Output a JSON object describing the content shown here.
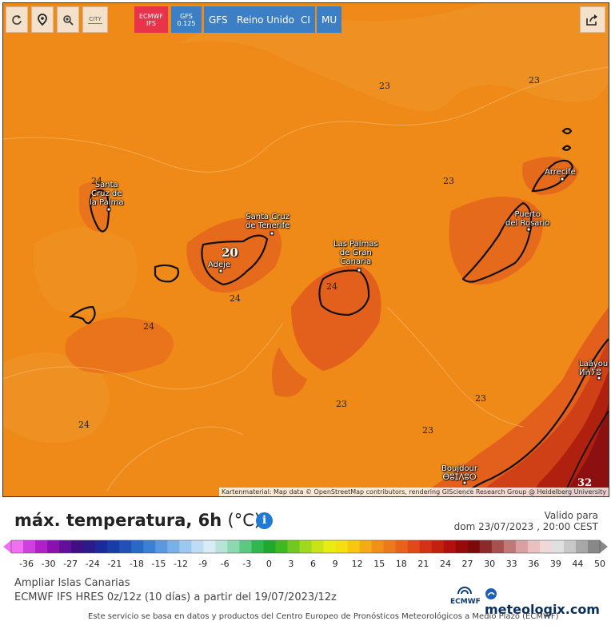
{
  "toolbar": {
    "city_label": "CITY",
    "models": [
      {
        "line1": "ECMWF",
        "line2": "IFS"
      },
      {
        "line1": "GFS",
        "line2": "0.125"
      }
    ],
    "gfs": "GFS",
    "region": "Reino Unido",
    "ci": "CI",
    "mu": "MU"
  },
  "map": {
    "cities": [
      {
        "name": "Santa\nCruz de\nla Palma"
      },
      {
        "name": "Santa Cruz\nde Tenerife"
      },
      {
        "name": "Adeje"
      },
      {
        "name": "Las Palmas\nde Gran\nCanaria"
      },
      {
        "name": "Puerto\ndel Rosario"
      },
      {
        "name": "Arrecife"
      },
      {
        "name": "Laâyou\nⵍⵄⵢⵓ"
      },
      {
        "name": "Boujdour\nⴱⵓⵊⴷⵓⵔ"
      }
    ],
    "isolines": [
      "23",
      "23",
      "23",
      "24",
      "20",
      "24",
      "24",
      "24",
      "23",
      "23",
      "23",
      "24",
      "32"
    ],
    "attribution": "Kartenmaterial: Map data © OpenStreetMap contributors, rendering GIScience Research Group @ Heidelberg University",
    "colors": {
      "base": "#ef8a18",
      "warm": "#e7621b",
      "hot": "#d04016",
      "very_hot": "#8c1010",
      "cool": "#f29a2c"
    }
  },
  "legend": {
    "title": "máx. temperatura, 6h",
    "unit": "(°C)",
    "info_icon": "i",
    "valid_label": "Valido para",
    "valid_date": "dom 23/07/2023 , 20:00 CEST",
    "scale_values": [
      "-36",
      "-30",
      "-27",
      "-24",
      "-21",
      "-18",
      "-15",
      "-12",
      "-9",
      "-6",
      "-3",
      "0",
      "3",
      "6",
      "9",
      "12",
      "15",
      "18",
      "21",
      "24",
      "27",
      "30",
      "33",
      "36",
      "39",
      "44",
      "50"
    ],
    "colors": [
      "#f070f0",
      "#d040e0",
      "#b020c8",
      "#8a10b0",
      "#60109a",
      "#401080",
      "#2a1a8a",
      "#1a2a9a",
      "#1a3ca8",
      "#2050b8",
      "#2a68c8",
      "#3a80d4",
      "#5a98e0",
      "#7ab0e8",
      "#9cc8f0",
      "#c0dcf4",
      "#d8ecf6",
      "#b8e4d8",
      "#8cd8b0",
      "#5cc880",
      "#30b850",
      "#20a830",
      "#40b820",
      "#70c820",
      "#a0d820",
      "#c8e418",
      "#e8ec10",
      "#f4e010",
      "#f8c810",
      "#f4ac14",
      "#f09018",
      "#ec7a1a",
      "#e8621a",
      "#e04a18",
      "#d43214",
      "#c42010",
      "#b0100e",
      "#960a0c",
      "#7c0a0a",
      "#8a2a2a",
      "#a85050",
      "#c07878",
      "#d8a0a0",
      "#e8c0c0",
      "#f0d8d8",
      "#e0e0e0",
      "#c8c8c8",
      "#a8a8a8",
      "#888888"
    ],
    "subtitle1": "Ampliar Islas Canarias",
    "subtitle2": "ECMWF IFS HRES 0z/12z (10 días) a partir del 19/07/2023/12z",
    "ecmwf_logo": "ECMWF",
    "brand": "meteologix.com",
    "footer": "Este servicio se basa en datos y productos del Centro Europeo de Pronósticos Meteorológicos a Medio Plazo (ECMWF)"
  }
}
